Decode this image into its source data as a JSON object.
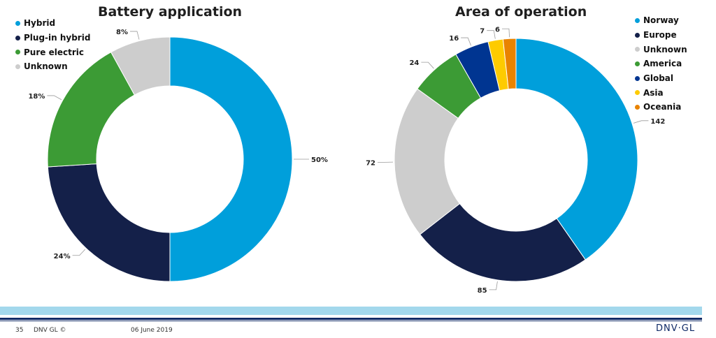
{
  "chart_data": [
    {
      "type": "pie",
      "title": "Battery application",
      "categories": [
        "Hybrid",
        "Plug-in hybrid",
        "Pure electric",
        "Unknown"
      ],
      "values": [
        50,
        24,
        18,
        8
      ],
      "labels": [
        "50%",
        "24%",
        "18%",
        "8%"
      ],
      "unit": "%",
      "colors": [
        "#009fdb",
        "#142049",
        "#3c9b35",
        "#cdcdcd"
      ],
      "legend": "top-left",
      "donut": true
    },
    {
      "type": "pie",
      "title": "Area of operation",
      "categories": [
        "Norway",
        "Europe",
        "Unknown",
        "America",
        "Global",
        "Asia",
        "Oceania"
      ],
      "values": [
        142,
        85,
        72,
        24,
        16,
        7,
        6
      ],
      "labels": [
        "142",
        "85",
        "72",
        "24",
        "16",
        "7",
        "6"
      ],
      "colors": [
        "#009fdb",
        "#142049",
        "#cdcdcd",
        "#3c9b35",
        "#003591",
        "#fecb00",
        "#e98300"
      ],
      "legend": "right",
      "donut": true
    }
  ],
  "footer": {
    "page": "35",
    "copyright": "DNV GL ©",
    "date": "06 June 2019",
    "logo": "DNV·GL"
  }
}
